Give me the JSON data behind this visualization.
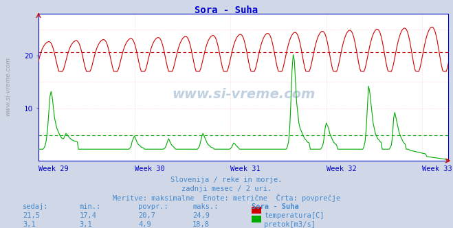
{
  "title": "Sora - Suha",
  "title_color": "#0000cc",
  "bg_color": "#d0d8e8",
  "plot_bg_color": "#ffffff",
  "xlabel_weeks": [
    "Week 29",
    "Week 30",
    "Week 31",
    "Week 32",
    "Week 33"
  ],
  "ylim": [
    0,
    28
  ],
  "ytick_vals": [
    10,
    20
  ],
  "grid_color_h": "#ffcccc",
  "grid_color_v": "#ddcccc",
  "temp_color": "#cc0000",
  "flow_color": "#00aa00",
  "avg_temp": 20.7,
  "avg_flow": 4.9,
  "watermark": "www.si-vreme.com",
  "subtitle1": "Slovenija / reke in morje.",
  "subtitle2": "zadnji mesec / 2 uri.",
  "subtitle3": "Meritve: maksimalne  Enote: metrične  Črta: povprečje",
  "label_sedaj": "sedaj:",
  "label_min": "min.:",
  "label_povpr": "povpr.:",
  "label_maks": "maks.:",
  "label_station": "Sora - Suha",
  "temp_sedaj": "21,5",
  "temp_min": "17,4",
  "temp_povpr": "20,7",
  "temp_maks": "24,9",
  "flow_sedaj": "3,1",
  "flow_min": "3,1",
  "flow_povpr": "4,9",
  "flow_maks": "18,8",
  "temp_label": "temperatura[C]",
  "flow_label": "pretok[m3/s]",
  "text_color": "#4488cc",
  "axis_color": "#0000cc",
  "n_points": 360,
  "n_weeks": 5,
  "week_start": 29
}
